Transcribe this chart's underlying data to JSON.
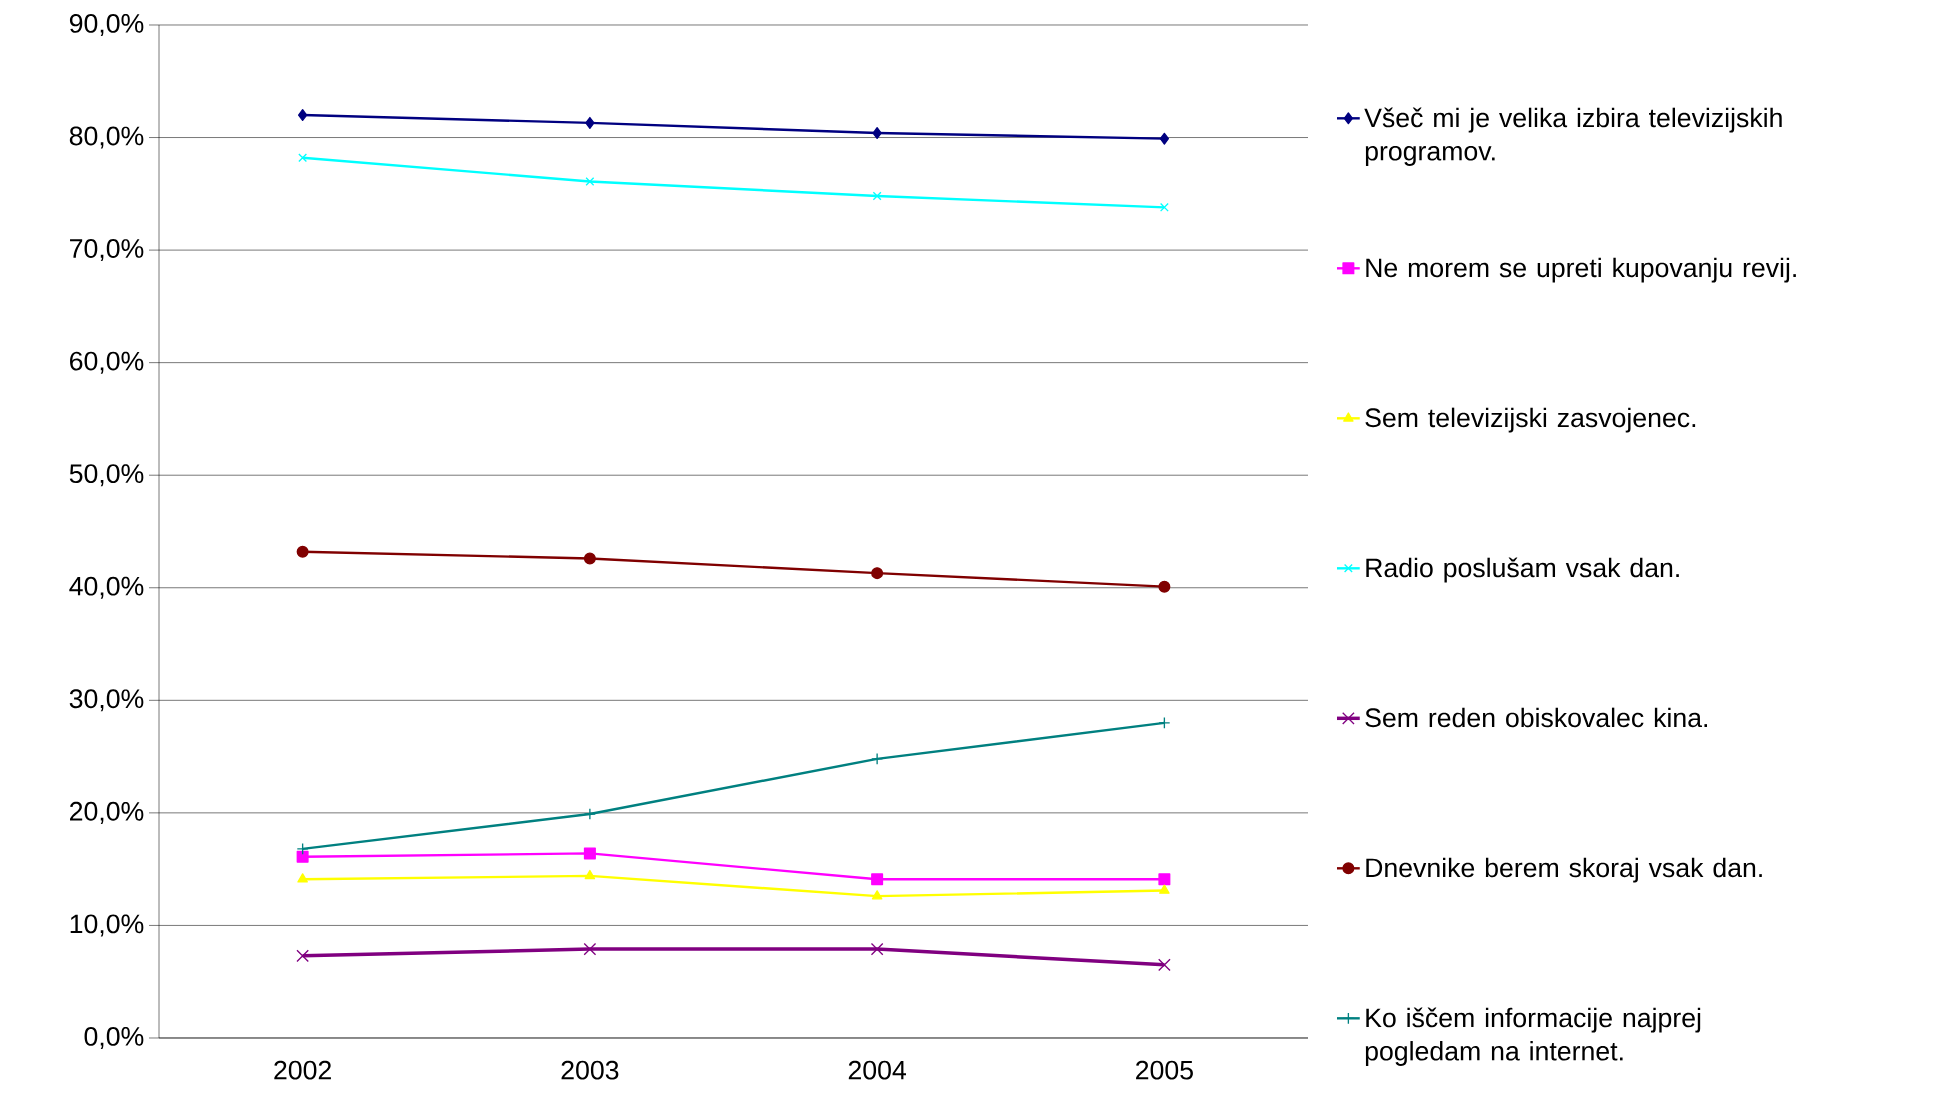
{
  "chart_data": {
    "type": "line",
    "categories": [
      "2002",
      "2003",
      "2004",
      "2005"
    ],
    "series": [
      {
        "name": "Všeč mi je velika izbira televizijskih programov.",
        "color": "#000080",
        "marker": "diamond",
        "values": [
          82.0,
          81.3,
          80.4,
          79.9
        ]
      },
      {
        "name": "Ne morem se upreti kupovanju revij.",
        "color": "#ff00ff",
        "marker": "square",
        "values": [
          16.1,
          16.4,
          14.1,
          14.1
        ]
      },
      {
        "name": "Sem televizijski zasvojenec.",
        "color": "#ffff00",
        "marker": "triangle",
        "values": [
          14.1,
          14.4,
          12.6,
          13.1
        ]
      },
      {
        "name": "Radio poslušam vsak dan.",
        "color": "#00ffff",
        "marker": "cross",
        "values": [
          78.2,
          76.1,
          74.8,
          73.8
        ]
      },
      {
        "name": "Sem reden obiskovalec kina.",
        "color": "#800080",
        "marker": "cross",
        "values": [
          7.3,
          7.9,
          7.9,
          6.5
        ]
      },
      {
        "name": "Dnevnike berem skoraj vsak dan.",
        "color": "#800000",
        "marker": "circle",
        "values": [
          43.2,
          42.6,
          41.3,
          40.1
        ]
      },
      {
        "name": "Ko iščem informacije najprej pogledam na internet.",
        "color": "#008080",
        "marker": "plus",
        "values": [
          16.8,
          19.9,
          24.8,
          28.0
        ]
      }
    ],
    "ylim": [
      0,
      90
    ],
    "yticks": [
      {
        "value": 0,
        "label": "0,0%"
      },
      {
        "value": 10,
        "label": "10,0%"
      },
      {
        "value": 20,
        "label": "20,0%"
      },
      {
        "value": 30,
        "label": "30,0%"
      },
      {
        "value": 40,
        "label": "40,0%"
      },
      {
        "value": 50,
        "label": "50,0%"
      },
      {
        "value": 60,
        "label": "60,0%"
      },
      {
        "value": 70,
        "label": "70,0%"
      },
      {
        "value": 80,
        "label": "80,0%"
      },
      {
        "value": 90,
        "label": "90,0%"
      }
    ],
    "grid": "y",
    "legend": "right"
  }
}
